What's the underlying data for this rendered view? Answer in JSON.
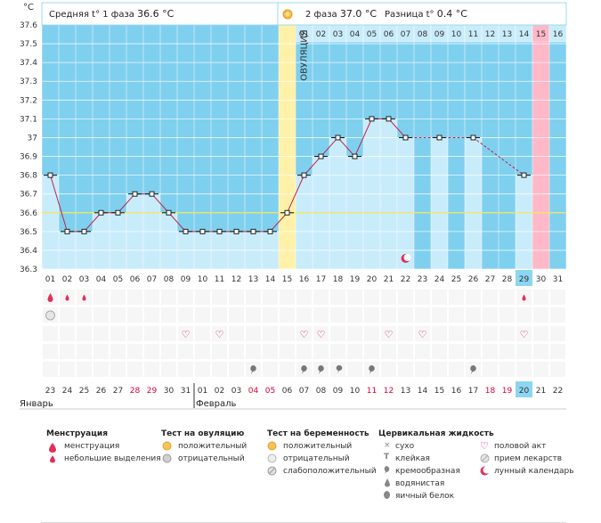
{
  "header": {
    "unit": "°C",
    "phase1_prefix": "Средняя t° 1 фаза ",
    "phase1_value": "36.6 °C",
    "phase2_prefix": "2 фаза ",
    "phase2_value": "37.0 °C",
    "diff_prefix": "Разница t° ",
    "diff_value": "0.4 °C"
  },
  "ovulation_label": "ОВУЛЯЦИЯ",
  "colors": {
    "bg_blue": "#7fd0ee",
    "panel_fill": "#c9ecfb",
    "line": "#c0234c",
    "ovulation": "#fff1a8",
    "pink_day": "#ffb8c8",
    "highlight": "#8cd6f2",
    "coverline": "#f2e65a",
    "red_text": "#d8003c"
  },
  "chart_data": {
    "type": "line",
    "ylim": [
      36.3,
      37.6
    ],
    "yticks": [
      "36.3",
      "36.4",
      "36.5",
      "36.6",
      "36.7",
      "36.8",
      "36.9",
      "37",
      "37.1",
      "37.2",
      "37.3",
      "37.4",
      "37.5",
      "37.6"
    ],
    "cycle_days": [
      "01",
      "02",
      "03",
      "04",
      "05",
      "06",
      "07",
      "08",
      "09",
      "10",
      "11",
      "12",
      "13",
      "14",
      "15",
      "16",
      "17",
      "18",
      "19",
      "20",
      "21",
      "22",
      "23",
      "24",
      "25",
      "26",
      "27",
      "28",
      "29",
      "30",
      "31"
    ],
    "phase2_days": [
      "01",
      "02",
      "03",
      "04",
      "05",
      "06",
      "07",
      "08",
      "09",
      "10",
      "11",
      "12",
      "13",
      "14",
      "15",
      "16"
    ],
    "temperatures": [
      36.8,
      36.5,
      36.5,
      36.6,
      36.6,
      36.7,
      36.7,
      36.6,
      36.5,
      36.5,
      36.5,
      36.5,
      36.5,
      36.5,
      36.6,
      36.8,
      36.9,
      37.0,
      36.9,
      37.1,
      37.1,
      37.0,
      null,
      37.0,
      null,
      37.0,
      null,
      null,
      36.8,
      null,
      null
    ],
    "dashed_from_day": 22,
    "coverline": 36.6,
    "ovulation_day": 15,
    "pink_day": 15,
    "highlight_day": 29,
    "calendar_dates": [
      "23",
      "24",
      "25",
      "26",
      "27",
      "28",
      "29",
      "30",
      "31",
      "01",
      "02",
      "03",
      "04",
      "05",
      "06",
      "07",
      "08",
      "09",
      "10",
      "11",
      "12",
      "13",
      "14",
      "15",
      "16",
      "17",
      "18",
      "19",
      "20",
      "21",
      "22"
    ],
    "red_date_indices": [
      5,
      6,
      12,
      13,
      19,
      20,
      26,
      27
    ],
    "months": [
      "Январь",
      "Февраль"
    ]
  },
  "legend": {
    "menstruation": {
      "title": "Менструация",
      "items": [
        "менструация",
        "небольшие выделения"
      ]
    },
    "ovulation_test": {
      "title": "Тест на овуляцию",
      "items": [
        "положительный",
        "отрицательный"
      ]
    },
    "pregnancy_test": {
      "title": "Тест на беременность",
      "items": [
        "положительный",
        "отрицательный",
        "слабоположительный"
      ]
    },
    "cervical": {
      "title": "Цервикальная жидкость",
      "items": [
        "сухо",
        "клейкая",
        "кремообразная",
        "водянистая",
        "яичный белок"
      ]
    },
    "other": {
      "items": [
        "половой акт",
        "прием лекарств",
        "лунный календарь"
      ]
    }
  }
}
